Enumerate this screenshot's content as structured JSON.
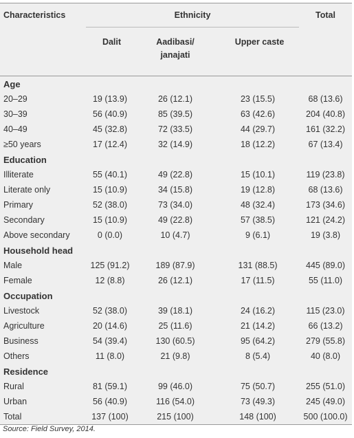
{
  "header": {
    "characteristics": "Characteristics",
    "ethnicity": "Ethnicity",
    "columns": [
      "Dalit",
      "Aadibasi/ janajati",
      "Upper caste"
    ],
    "total": "Total"
  },
  "sections": [
    {
      "title": "Age",
      "rows": [
        [
          "20–29",
          "19 (13.9)",
          "26 (12.1)",
          "23 (15.5)",
          "68 (13.6)"
        ],
        [
          "30–39",
          "56 (40.9)",
          "85 (39.5)",
          "63 (42.6)",
          "204 (40.8)"
        ],
        [
          "40–49",
          "45 (32.8)",
          "72 (33.5)",
          "44 (29.7)",
          "161 (32.2)"
        ],
        [
          "≥50 years",
          "17 (12.4)",
          "32 (14.9)",
          "18 (12.2)",
          "67 (13.4)"
        ]
      ]
    },
    {
      "title": "Education",
      "rows": [
        [
          "Illiterate",
          "55 (40.1)",
          "49 (22.8)",
          "15 (10.1)",
          "119 (23.8)"
        ],
        [
          "Literate only",
          "15 (10.9)",
          "34 (15.8)",
          "19 (12.8)",
          "68 (13.6)"
        ],
        [
          "Primary",
          "52 (38.0)",
          "73 (34.0)",
          "48 (32.4)",
          "173 (34.6)"
        ],
        [
          "Secondary",
          "15 (10.9)",
          "49 (22.8)",
          "57 (38.5)",
          "121 (24.2)"
        ],
        [
          "Above secondary",
          "0 (0.0)",
          "10 (4.7)",
          "9 (6.1)",
          "19 (3.8)"
        ]
      ]
    },
    {
      "title": "Household head",
      "rows": [
        [
          "Male",
          "125 (91.2)",
          "189 (87.9)",
          "131 (88.5)",
          "445 (89.0)"
        ],
        [
          "Female",
          "12 (8.8)",
          "26 (12.1)",
          "17 (11.5)",
          "55 (11.0)"
        ]
      ]
    },
    {
      "title": "Occupation",
      "rows": [
        [
          "Livestock",
          "52 (38.0)",
          "39 (18.1)",
          "24 (16.2)",
          "115 (23.0)"
        ],
        [
          "Agriculture",
          "20 (14.6)",
          "25 (11.6)",
          "21 (14.2)",
          "66 (13.2)"
        ],
        [
          "Business",
          "54 (39.4)",
          "130 (60.5)",
          "95 (64.2)",
          "279 (55.8)"
        ],
        [
          "Others",
          "11 (8.0)",
          "21 (9.8)",
          "8 (5.4)",
          "40 (8.0)"
        ]
      ]
    },
    {
      "title": "Residence",
      "rows": [
        [
          "Rural",
          "81 (59.1)",
          "99 (46.0)",
          "75 (50.7)",
          "255 (51.0)"
        ],
        [
          "Urban",
          "56 (40.9)",
          "116 (54.0)",
          "73 (49.3)",
          "245 (49.0)"
        ]
      ]
    }
  ],
  "total_row": [
    "Total",
    "137 (100)",
    "215 (100)",
    "148 (100)",
    "500 (100.0)"
  ],
  "source": "Source: Field Survey, 2014."
}
